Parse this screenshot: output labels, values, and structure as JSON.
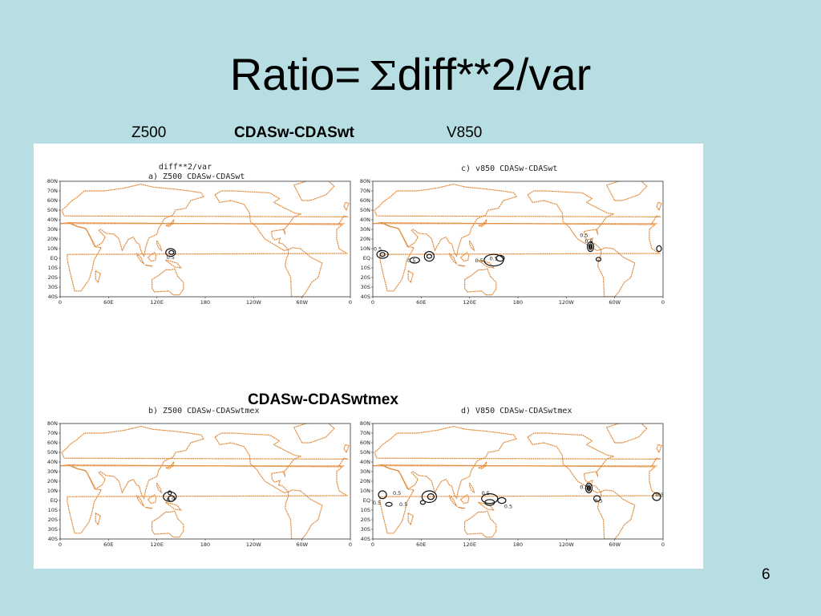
{
  "title": {
    "prefix": "Ratio=",
    "sigma": "Σ",
    "rest": "diff**2/var"
  },
  "labels": {
    "z500": "Z500",
    "top_experiment": "CDASw-CDASwt",
    "v850": "V850",
    "bottom_experiment": "CDASw-CDASwtmex"
  },
  "figure": {
    "header": "diff**2/var",
    "panels": [
      {
        "title": "a) Z500   CDASw-CDASwt"
      },
      {
        "title": "c) v850  CDASw-CDASwt"
      },
      {
        "title": "b) Z500  CDASw-CDASwtmex"
      },
      {
        "title": "d) V850  CDASw-CDASwtmex"
      }
    ],
    "lat_labels": [
      "80N",
      "70N",
      "60N",
      "50N",
      "40N",
      "30N",
      "20N",
      "10N",
      "EQ",
      "10S",
      "20S",
      "30S",
      "40S"
    ],
    "lon_labels": [
      "0",
      "60E",
      "120E",
      "180",
      "120W",
      "60W",
      "0"
    ],
    "contour_label": "0.5",
    "colors": {
      "coastline": "#e08a3a",
      "contour": "#111111"
    }
  },
  "slide_number": "6"
}
